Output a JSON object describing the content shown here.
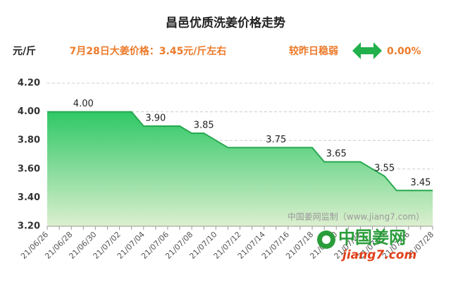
{
  "chart_data": {
    "type": "area",
    "title": "昌邑优质洗姜价格走势",
    "y_label": "元/斤",
    "subtitle": "7月28日大姜价格：3.45元/斤左右",
    "change_text": "较昨日稳弱",
    "change_value": "0.00%",
    "watermark": "中国姜网监制（www.jiang7.com）",
    "logo_name": "中国姜网",
    "logo_url": "jiang7.com",
    "categories": [
      "21/06/26",
      null,
      "21/06/28",
      null,
      "21/06/30",
      null,
      "21/07/02",
      null,
      "21/07/04",
      null,
      "21/07/06",
      null,
      "21/07/08",
      null,
      "21/07/10",
      null,
      "21/07/12",
      null,
      "21/07/14",
      null,
      "21/07/16",
      null,
      "21/07/18",
      null,
      "21/07/20",
      null,
      "21/07/22",
      null,
      "21/07/24",
      null,
      "21/07/26",
      null,
      "21/07/28"
    ],
    "values": [
      4.0,
      4.0,
      4.0,
      4.0,
      4.0,
      4.0,
      4.0,
      4.0,
      3.9,
      3.9,
      3.9,
      3.9,
      3.85,
      3.85,
      3.8,
      3.75,
      3.75,
      3.75,
      3.75,
      3.75,
      3.75,
      3.75,
      3.75,
      3.65,
      3.65,
      3.65,
      3.65,
      3.6,
      3.55,
      3.45,
      3.45,
      3.45,
      3.45
    ],
    "value_labels": [
      null,
      null,
      null,
      "4.00",
      null,
      null,
      null,
      null,
      null,
      "3.90",
      null,
      null,
      null,
      "3.85",
      null,
      null,
      null,
      null,
      null,
      "3.75",
      null,
      null,
      null,
      null,
      "3.65",
      null,
      null,
      null,
      "3.55",
      null,
      null,
      "3.45",
      null
    ],
    "color": "#27a84f",
    "ylim": [
      3.2,
      4.3
    ],
    "yticks": [
      {
        "value": 3.2,
        "label": "3.20"
      },
      {
        "value": 3.4,
        "label": "3.40"
      },
      {
        "value": 3.6,
        "label": "3.60"
      },
      {
        "value": 3.8,
        "label": "3.80"
      },
      {
        "value": 4.0,
        "label": "4.00"
      },
      {
        "value": 4.2,
        "label": "4.20"
      }
    ],
    "grid": true
  }
}
